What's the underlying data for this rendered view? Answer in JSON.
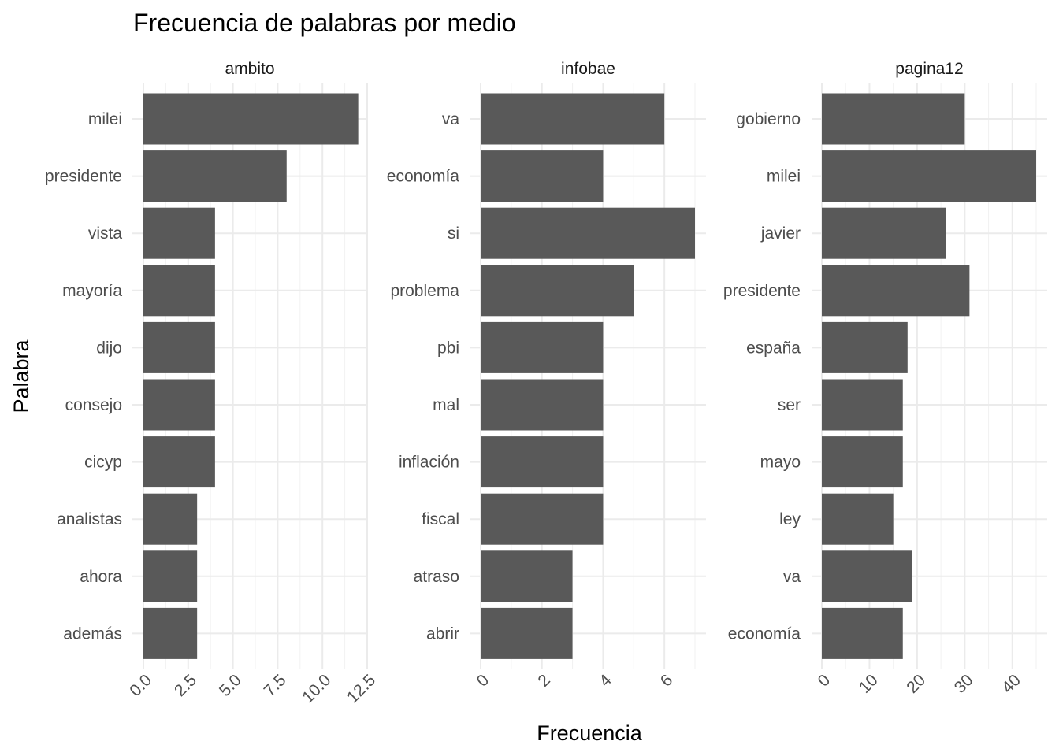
{
  "chart_data": [
    {
      "type": "bar",
      "orientation": "horizontal",
      "panel": "ambito",
      "categories": [
        "milei",
        "presidente",
        "vista",
        "mayoría",
        "dijo",
        "consejo",
        "cicyp",
        "analistas",
        "ahora",
        "además"
      ],
      "values": [
        12,
        8,
        4,
        4,
        4,
        4,
        4,
        3,
        3,
        3
      ],
      "xlim": [
        0,
        12.5
      ],
      "xticks": [
        "0.0",
        "2.5",
        "5.0",
        "7.5",
        "10.0",
        "12.5"
      ],
      "xtick_values": [
        0,
        2.5,
        5,
        7.5,
        10,
        12.5
      ]
    },
    {
      "type": "bar",
      "orientation": "horizontal",
      "panel": "infobae",
      "categories": [
        "va",
        "economía",
        "si",
        "problema",
        "pbi",
        "mal",
        "inflación",
        "fiscal",
        "atraso",
        "abrir"
      ],
      "values": [
        6,
        4,
        7,
        5,
        4,
        4,
        4,
        4,
        3,
        3
      ],
      "xlim": [
        0,
        7
      ],
      "xticks": [
        "0",
        "2",
        "4",
        "6"
      ],
      "xtick_values": [
        0,
        2,
        4,
        6
      ]
    },
    {
      "type": "bar",
      "orientation": "horizontal",
      "panel": "pagina12",
      "categories": [
        "gobierno",
        "milei",
        "javier",
        "presidente",
        "españa",
        "ser",
        "mayo",
        "ley",
        "va",
        "economía"
      ],
      "values": [
        30,
        45,
        26,
        31,
        18,
        17,
        17,
        15,
        19,
        17
      ],
      "xlim": [
        0,
        45
      ],
      "xticks": [
        "0",
        "10",
        "20",
        "30",
        "40"
      ],
      "xtick_values": [
        0,
        10,
        20,
        30,
        40
      ]
    }
  ],
  "title": "Frecuencia de palabras por medio",
  "xlabel": "Frecuencia",
  "ylabel": "Palabra",
  "bar_color": "#595959",
  "grid": true
}
